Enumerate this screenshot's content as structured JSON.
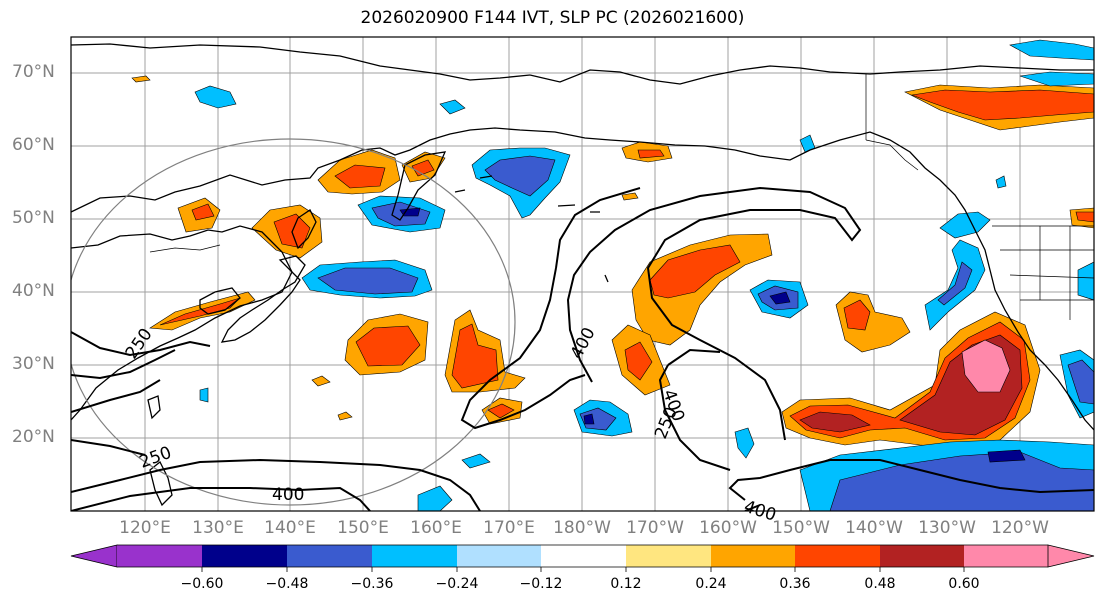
{
  "title": "2026020900 F144 IVT, SLP PC (2026021600)",
  "lat_labels": [
    "70°N",
    "60°N",
    "50°N",
    "40°N",
    "30°N",
    "20°N"
  ],
  "lon_labels": [
    "120°E",
    "130°E",
    "140°E",
    "150°E",
    "160°E",
    "170°E",
    "180°W",
    "170°W",
    "160°W",
    "150°W",
    "140°W",
    "130°W",
    "120°W"
  ],
  "contour_labels": [
    "250",
    "400",
    "400",
    "250",
    "400",
    "400"
  ],
  "colorbar": {
    "ticks": [
      "−0.60",
      "−0.48",
      "−0.36",
      "−0.24",
      "−0.12",
      "0.12",
      "0.24",
      "0.36",
      "0.48",
      "0.60"
    ],
    "colors": [
      "#9932cc",
      "#00008b",
      "#3a5bcf",
      "#00bfff",
      "#b0e0ff",
      "#ffffff",
      "#ffe680",
      "#ffa500",
      "#ff4500",
      "#b22222",
      "#ff88aa",
      "#ff88aa"
    ]
  }
}
